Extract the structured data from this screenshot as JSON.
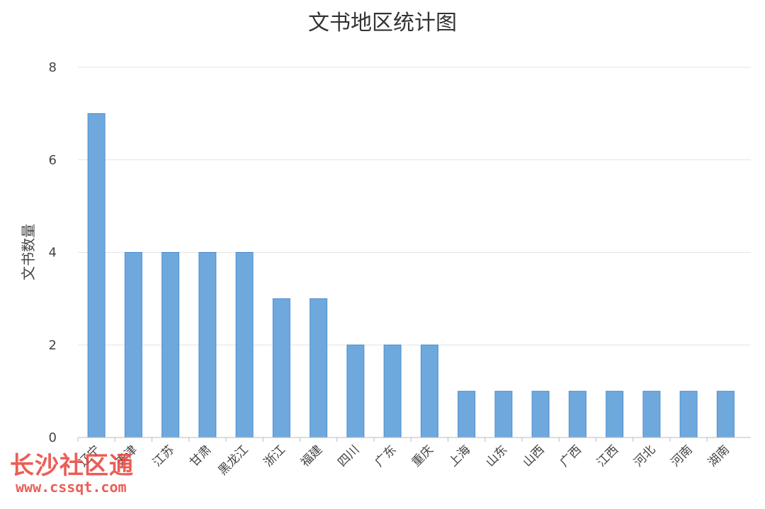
{
  "chart_data": {
    "type": "bar",
    "title": "文书地区统计图",
    "xlabel": "",
    "ylabel": "文书数量",
    "ylim": [
      0,
      8
    ],
    "yticks": [
      0,
      2,
      4,
      6,
      8
    ],
    "grid": true,
    "categories": [
      "辽宁",
      "天津",
      "江苏",
      "甘肃",
      "黑龙江",
      "浙江",
      "福建",
      "四川",
      "广东",
      "重庆",
      "上海",
      "山东",
      "山西",
      "广西",
      "江西",
      "河北",
      "河南",
      "湖南"
    ],
    "values": [
      7,
      4,
      4,
      4,
      4,
      3,
      3,
      2,
      2,
      2,
      1,
      1,
      1,
      1,
      1,
      1,
      1,
      1
    ],
    "bar_color": "#6fa8dc"
  },
  "watermark": {
    "main": "长沙社区通",
    "sub": "www.cssqt.com",
    "color": "#e8423a"
  }
}
